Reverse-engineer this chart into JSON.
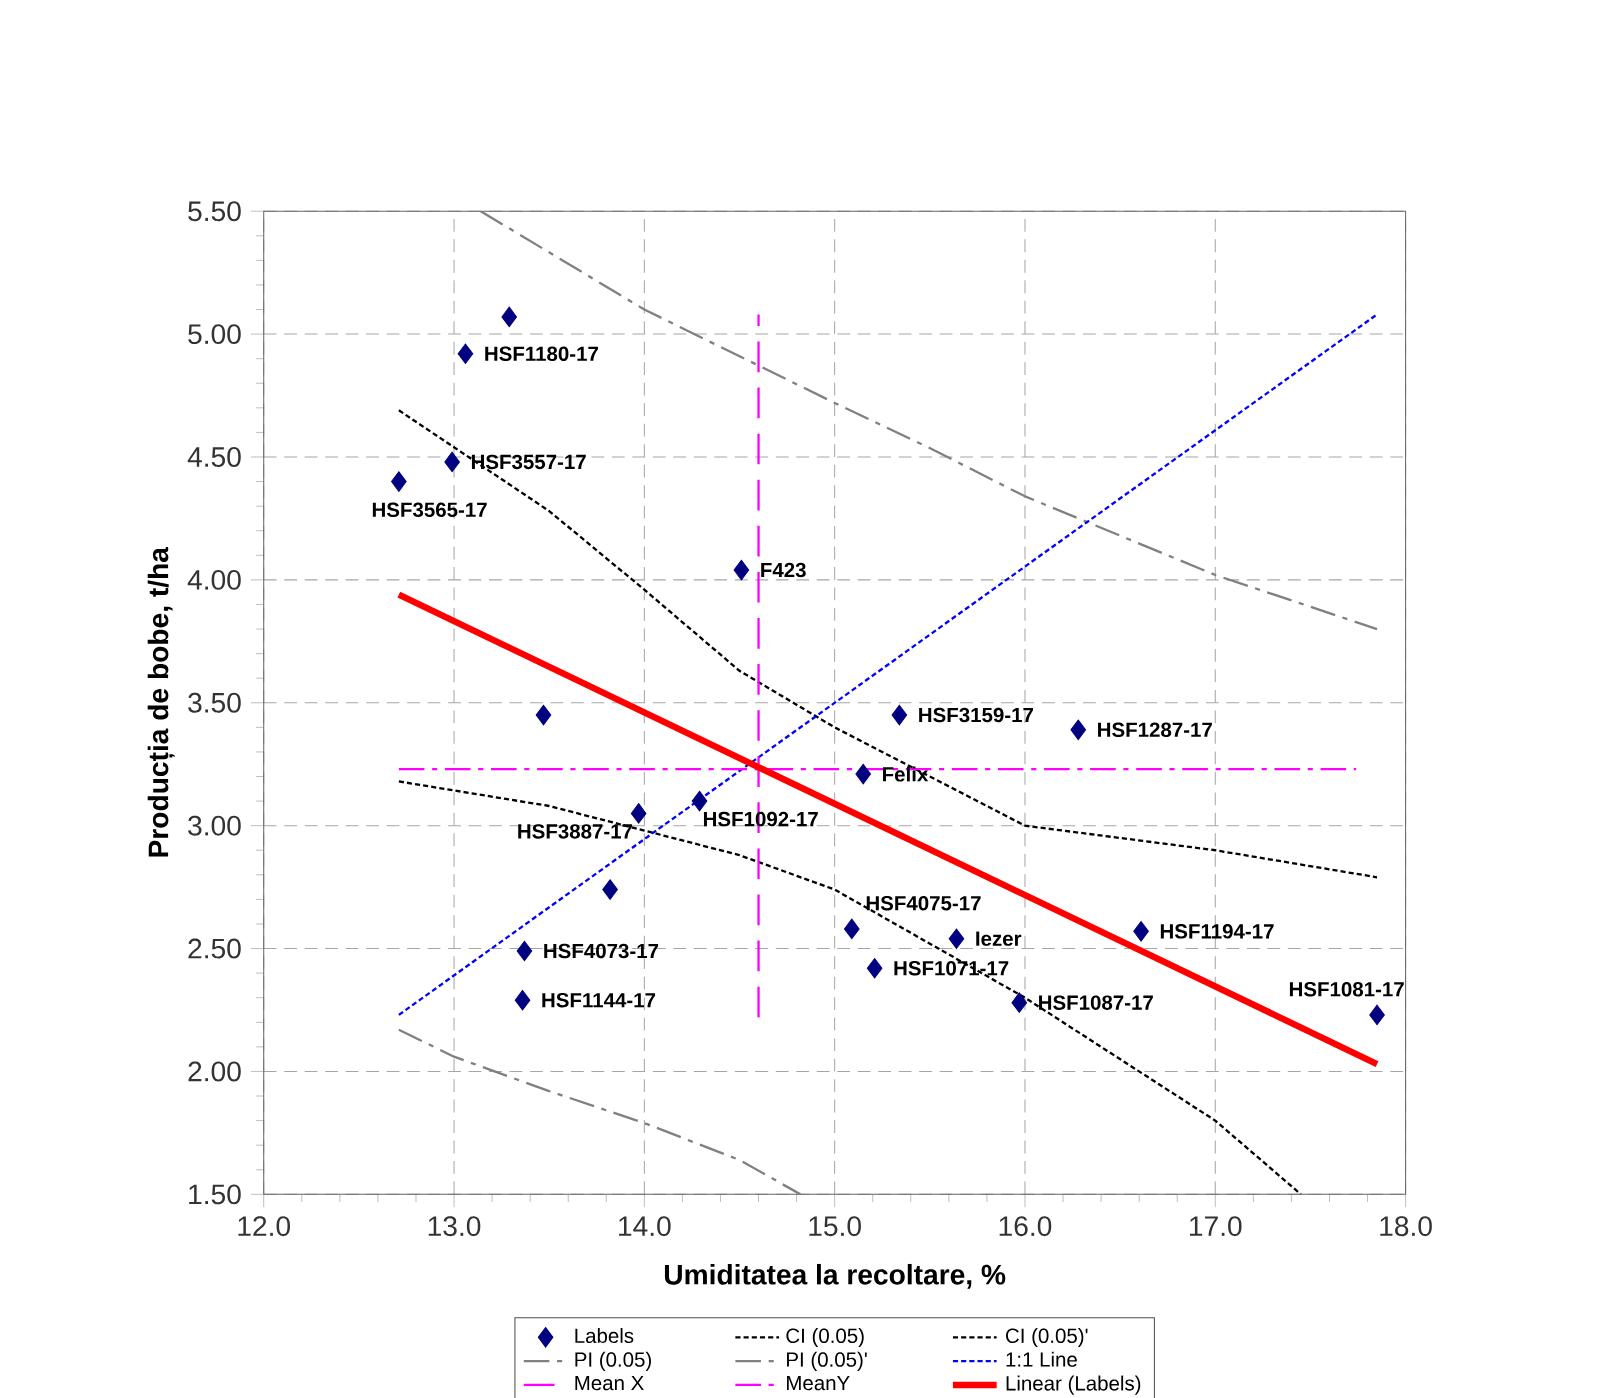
{
  "chart_data": {
    "type": "scatter",
    "xlabel": "Umiditatea la recoltare, %",
    "ylabel": "Producția de bobe, t/ha",
    "xlim": [
      12.0,
      18.0
    ],
    "xticks": [
      {
        "value": 12,
        "label": "12.0"
      },
      {
        "value": 13,
        "label": "13.0"
      },
      {
        "value": 14,
        "label": "14.0"
      },
      {
        "value": 15,
        "label": "15.0"
      },
      {
        "value": 16,
        "label": "16.0"
      },
      {
        "value": 17,
        "label": "17.0"
      },
      {
        "value": 18,
        "label": "18.0"
      }
    ],
    "ylim": [
      1.5,
      5.5
    ],
    "yticks": [
      {
        "value": 1.5,
        "label": "1.50"
      },
      {
        "value": 2,
        "label": "2.00"
      },
      {
        "value": 2.5,
        "label": "2.50"
      },
      {
        "value": 3,
        "label": "3.00"
      },
      {
        "value": 3.5,
        "label": "3.50"
      },
      {
        "value": 4,
        "label": "4.00"
      },
      {
        "value": 4.5,
        "label": "4.50"
      },
      {
        "value": 5,
        "label": "5.00"
      },
      {
        "value": 5.5,
        "label": "5.50"
      }
    ],
    "grid": true,
    "legend": "bottom",
    "series": [
      {
        "name": "Labels",
        "marker": "diamond",
        "color": "#000080",
        "x": [
          13.29,
          13.06,
          12.99,
          12.71,
          14.51,
          13.47,
          15.34,
          16.28,
          15.15,
          13.97,
          14.29,
          13.82,
          15.09,
          15.64,
          15.21,
          15.97,
          16.61,
          17.85,
          13.37,
          13.36
        ],
        "values": [
          5.07,
          4.92,
          4.48,
          4.4,
          4.04,
          3.45,
          3.45,
          3.39,
          3.21,
          3.05,
          3.1,
          2.74,
          2.58,
          2.54,
          2.42,
          2.28,
          2.57,
          2.23,
          2.49,
          2.29
        ]
      },
      {
        "name": "CI (0.05)",
        "type": "line",
        "color": "#000000",
        "line_style": "dotted",
        "x": [
          12.71,
          13.5,
          14.0,
          14.5,
          15.0,
          16.0,
          17.0,
          17.85
        ],
        "values": [
          4.69,
          4.28,
          3.96,
          3.63,
          3.4,
          3.0,
          2.9,
          2.79
        ]
      },
      {
        "name": "CI (0.05)'",
        "type": "line",
        "color": "#000000",
        "line_style": "dotted",
        "x": [
          12.71,
          13.5,
          14.0,
          14.5,
          15.0,
          16.0,
          17.0,
          17.45
        ],
        "values": [
          3.18,
          3.08,
          2.98,
          2.88,
          2.74,
          2.3,
          1.8,
          1.5
        ]
      },
      {
        "name": "PI (0.05)",
        "type": "line",
        "color": "#808080",
        "line_style": "dashdot",
        "x": [
          13.14,
          14.0,
          15.0,
          15.49,
          16.0,
          17.0,
          17.85
        ],
        "values": [
          5.5,
          5.1,
          4.72,
          4.54,
          4.34,
          4.02,
          3.8
        ]
      },
      {
        "name": "PI (0.05)'",
        "type": "line",
        "color": "#808080",
        "line_style": "dashdot",
        "x": [
          12.71,
          13.0,
          13.5,
          14.0,
          14.5,
          14.82
        ],
        "values": [
          2.17,
          2.06,
          1.92,
          1.79,
          1.64,
          1.5
        ]
      },
      {
        "name": "1:1 Line",
        "type": "line",
        "color": "#0000ff",
        "line_style": "dotted",
        "x": [
          12.71,
          17.85
        ],
        "values": [
          2.23,
          5.08
        ]
      },
      {
        "name": "Mean X",
        "type": "line",
        "color": "#ff00ff",
        "line_style": "dashed",
        "x": [
          14.6,
          14.6
        ],
        "values": [
          2.22,
          5.08
        ]
      },
      {
        "name": "MeanY",
        "type": "line",
        "color": "#ff00ff",
        "line_style": "dashdot",
        "x": [
          12.71,
          17.74
        ],
        "values": [
          3.23,
          3.23
        ]
      },
      {
        "name": "Linear (Labels)",
        "type": "line",
        "color": "#ff0000",
        "line_style": "solid",
        "x": [
          12.71,
          17.85
        ],
        "values": [
          3.94,
          2.03
        ]
      }
    ],
    "annotations": [
      {
        "text": "HSF1180-17",
        "x": 13.06,
        "y": 4.92
      },
      {
        "text": "HSF3557-17",
        "x": 12.99,
        "y": 4.48
      },
      {
        "text": "HSF3565-17",
        "x": 12.71,
        "y": 4.4
      },
      {
        "text": "F423",
        "x": 14.51,
        "y": 4.04
      },
      {
        "text": "HSF3159-17",
        "x": 15.34,
        "y": 3.45
      },
      {
        "text": "HSF1287-17",
        "x": 16.28,
        "y": 3.39
      },
      {
        "text": "Felix",
        "x": 15.15,
        "y": 3.21
      },
      {
        "text": "HSF3887-17",
        "x": 13.97,
        "y": 3.05
      },
      {
        "text": "HSF1092-17",
        "x": 14.29,
        "y": 3.1
      },
      {
        "text": "HSF4075-17",
        "x": 15.09,
        "y": 2.58
      },
      {
        "text": "Iezer",
        "x": 15.64,
        "y": 2.54
      },
      {
        "text": "HSF1071-17",
        "x": 15.21,
        "y": 2.42
      },
      {
        "text": "HSF1087-17",
        "x": 15.97,
        "y": 2.28
      },
      {
        "text": "HSF1194-17",
        "x": 16.61,
        "y": 2.57
      },
      {
        "text": "HSF1081-17",
        "x": 17.85,
        "y": 2.23
      },
      {
        "text": "HSF4073-17",
        "x": 13.37,
        "y": 2.49
      },
      {
        "text": "HSF1144-17",
        "x": 13.36,
        "y": 2.29
      }
    ]
  }
}
